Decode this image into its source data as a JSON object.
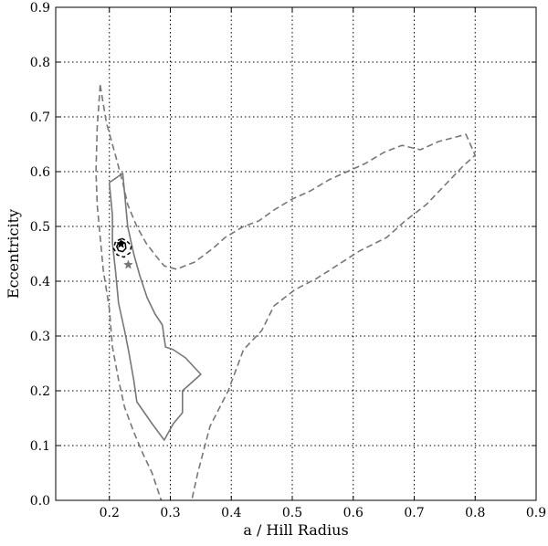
{
  "chart_data": {
    "type": "line",
    "title": "",
    "xlabel": "a / Hill Radius",
    "ylabel": "Eccentricity",
    "xlim": [
      0.112,
      0.9
    ],
    "ylim": [
      0.0,
      0.9
    ],
    "xticks": [
      0.2,
      0.3,
      0.4,
      0.5,
      0.6,
      0.7,
      0.8,
      0.9
    ],
    "xtick_labels": [
      "0.2",
      "0.3",
      "0.4",
      "0.5",
      "0.6",
      "0.7",
      "0.8",
      "0.9"
    ],
    "yticks": [
      0.0,
      0.1,
      0.2,
      0.3,
      0.4,
      0.5,
      0.6,
      0.7,
      0.8,
      0.9
    ],
    "ytick_labels": [
      "0.0",
      "0.1",
      "0.2",
      "0.3",
      "0.4",
      "0.5",
      "0.6",
      "0.7",
      "0.8",
      "0.9"
    ],
    "grid": true,
    "series": [
      {
        "style": "dashed",
        "color": "#777777",
        "points": [
          [
            0.185,
            0.758
          ],
          [
            0.195,
            0.69
          ],
          [
            0.21,
            0.63
          ],
          [
            0.222,
            0.58
          ],
          [
            0.23,
            0.54
          ],
          [
            0.245,
            0.5
          ],
          [
            0.26,
            0.47
          ],
          [
            0.275,
            0.448
          ],
          [
            0.29,
            0.428
          ],
          [
            0.31,
            0.422
          ],
          [
            0.34,
            0.435
          ],
          [
            0.37,
            0.46
          ],
          [
            0.39,
            0.48
          ],
          [
            0.42,
            0.5
          ],
          [
            0.445,
            0.51
          ],
          [
            0.47,
            0.53
          ],
          [
            0.5,
            0.55
          ],
          [
            0.53,
            0.565
          ],
          [
            0.56,
            0.585
          ],
          [
            0.59,
            0.6
          ],
          [
            0.62,
            0.615
          ],
          [
            0.65,
            0.635
          ],
          [
            0.68,
            0.648
          ],
          [
            0.71,
            0.64
          ],
          [
            0.74,
            0.655
          ],
          [
            0.785,
            0.668
          ],
          [
            0.8,
            0.63
          ],
          [
            0.78,
            0.61
          ],
          [
            0.75,
            0.575
          ],
          [
            0.72,
            0.54
          ],
          [
            0.685,
            0.51
          ],
          [
            0.655,
            0.48
          ],
          [
            0.61,
            0.455
          ],
          [
            0.575,
            0.43
          ],
          [
            0.54,
            0.405
          ],
          [
            0.505,
            0.385
          ],
          [
            0.47,
            0.355
          ],
          [
            0.45,
            0.31
          ],
          [
            0.42,
            0.275
          ],
          [
            0.395,
            0.2
          ],
          [
            0.365,
            0.135
          ],
          [
            0.345,
            0.05
          ],
          [
            0.335,
            0.0
          ]
        ]
      },
      {
        "style": "dashed",
        "color": "#777777",
        "points": [
          [
            0.185,
            0.758
          ],
          [
            0.18,
            0.68
          ],
          [
            0.178,
            0.6
          ],
          [
            0.18,
            0.54
          ],
          [
            0.185,
            0.48
          ],
          [
            0.19,
            0.42
          ],
          [
            0.2,
            0.35
          ],
          [
            0.205,
            0.28
          ],
          [
            0.215,
            0.22
          ],
          [
            0.225,
            0.17
          ],
          [
            0.24,
            0.125
          ],
          [
            0.255,
            0.085
          ],
          [
            0.27,
            0.05
          ],
          [
            0.285,
            0.0
          ]
        ]
      },
      {
        "style": "solid",
        "color": "#777777",
        "points": [
          [
            0.2,
            0.58
          ],
          [
            0.222,
            0.597
          ],
          [
            0.23,
            0.5
          ],
          [
            0.24,
            0.45
          ],
          [
            0.25,
            0.41
          ],
          [
            0.262,
            0.37
          ],
          [
            0.275,
            0.34
          ],
          [
            0.287,
            0.32
          ],
          [
            0.292,
            0.28
          ],
          [
            0.305,
            0.275
          ],
          [
            0.325,
            0.26
          ],
          [
            0.35,
            0.23
          ],
          [
            0.32,
            0.2
          ],
          [
            0.32,
            0.16
          ],
          [
            0.305,
            0.14
          ],
          [
            0.29,
            0.11
          ],
          [
            0.27,
            0.14
          ],
          [
            0.245,
            0.18
          ],
          [
            0.24,
            0.22
          ],
          [
            0.232,
            0.27
          ],
          [
            0.225,
            0.31
          ],
          [
            0.215,
            0.36
          ],
          [
            0.21,
            0.42
          ],
          [
            0.205,
            0.47
          ],
          [
            0.205,
            0.52
          ],
          [
            0.2,
            0.58
          ]
        ]
      },
      {
        "style": "dashed",
        "color": "#000000",
        "points": [
          [
            0.22,
            0.478
          ],
          [
            0.228,
            0.474
          ],
          [
            0.236,
            0.465
          ],
          [
            0.234,
            0.452
          ],
          [
            0.224,
            0.444
          ],
          [
            0.213,
            0.448
          ],
          [
            0.207,
            0.46
          ],
          [
            0.21,
            0.472
          ],
          [
            0.22,
            0.478
          ]
        ]
      },
      {
        "style": "solid",
        "color": "#000000",
        "points": [
          [
            0.22,
            0.473
          ],
          [
            0.226,
            0.469
          ],
          [
            0.227,
            0.46
          ],
          [
            0.222,
            0.454
          ],
          [
            0.215,
            0.456
          ],
          [
            0.212,
            0.463
          ],
          [
            0.215,
            0.47
          ],
          [
            0.22,
            0.473
          ]
        ]
      }
    ],
    "markers": [
      {
        "x": 0.219,
        "y": 0.468,
        "symbol": "star",
        "color": "#000000"
      },
      {
        "x": 0.231,
        "y": 0.43,
        "symbol": "star",
        "color": "#777777"
      }
    ]
  }
}
